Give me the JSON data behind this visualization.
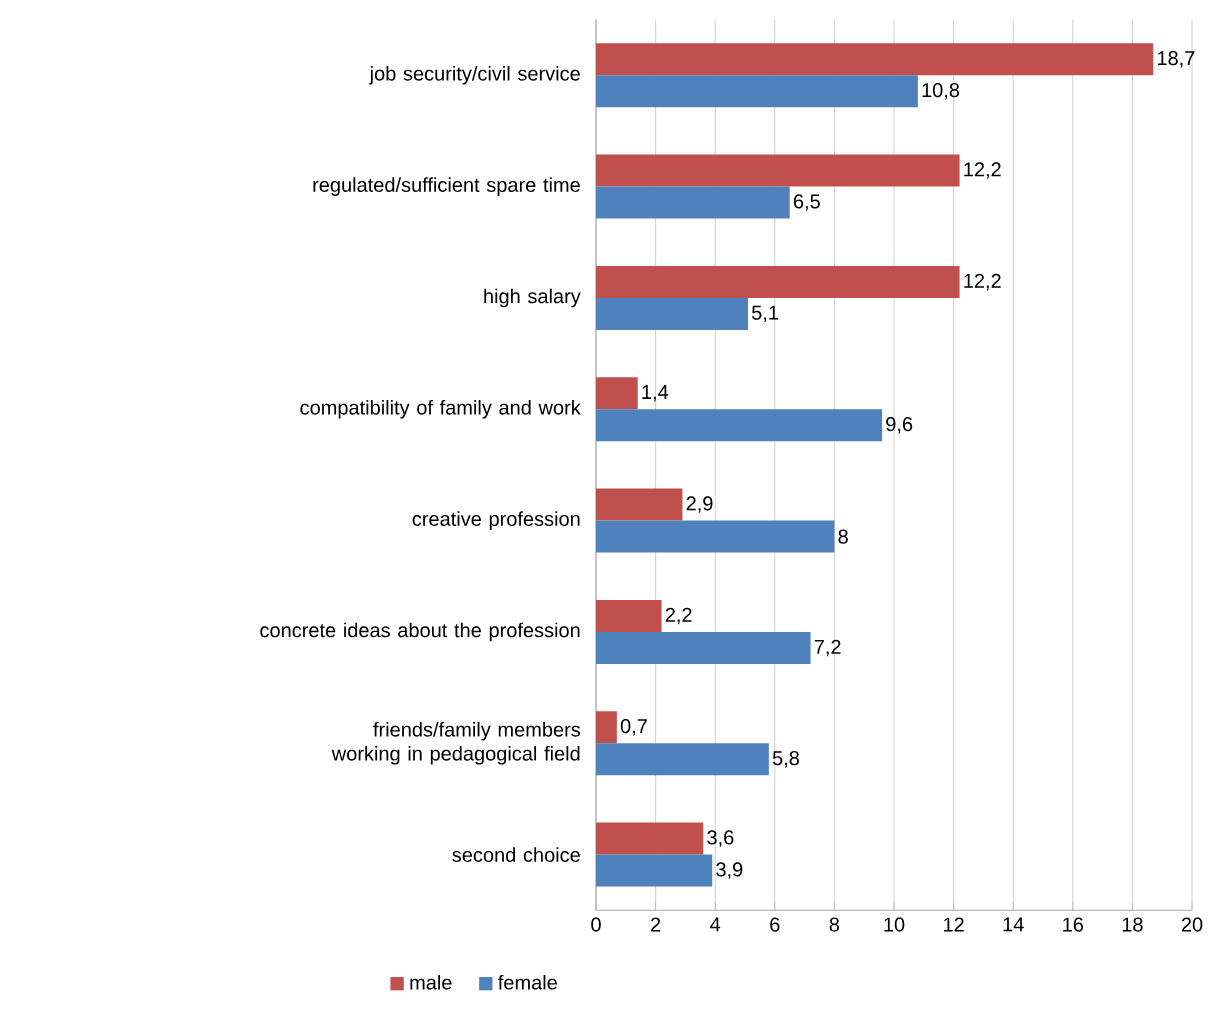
{
  "chart_data": {
    "type": "bar",
    "orientation": "horizontal",
    "categories": [
      "job security/civil service",
      "regulated/sufficient spare time",
      "high salary",
      "compatibility of family and work",
      "creative profession",
      "concrete ideas about the profession",
      "friends/family members working in pedagogical field",
      "second choice"
    ],
    "series": [
      {
        "name": "male",
        "color": "#c0504d",
        "values": [
          18.7,
          12.2,
          12.2,
          1.4,
          2.9,
          2.2,
          0.7,
          3.6
        ],
        "value_labels": [
          "18,7",
          "12,2",
          "12,2",
          "1,4",
          "2,9",
          "2,2",
          "0,7",
          "3,6"
        ]
      },
      {
        "name": "female",
        "color": "#4f81bd",
        "values": [
          10.8,
          6.5,
          5.1,
          9.6,
          8,
          7.2,
          5.8,
          3.9
        ],
        "value_labels": [
          "10,8",
          "6,5",
          "5,1",
          "9,6",
          "8",
          "7,2",
          "5,8",
          "3,9"
        ]
      }
    ],
    "xlim": [
      0,
      20
    ],
    "xticks": [
      0,
      2,
      4,
      6,
      8,
      10,
      12,
      14,
      16,
      18,
      20
    ],
    "grid": "x",
    "legend": "bottom"
  }
}
